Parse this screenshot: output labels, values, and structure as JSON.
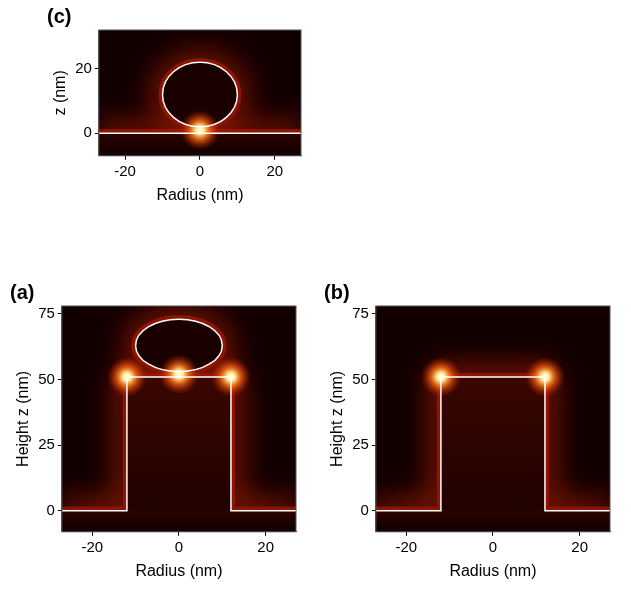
{
  "chart_data": [
    {
      "type": "field_map",
      "panel": "(c)",
      "xlabel": "Radius (nm)",
      "ylabel": "z (nm)",
      "xlim": [
        -27,
        27
      ],
      "ylim": [
        -7,
        32
      ],
      "xticks": [
        -20,
        0,
        20
      ],
      "yticks": [
        0,
        20
      ],
      "grid": false,
      "substrate_z": 0,
      "sphere": {
        "center": [
          0,
          12
        ],
        "radius": 10
      },
      "hot_spots": [
        {
          "x": 0,
          "z": 1
        }
      ]
    },
    {
      "type": "field_map",
      "panel": "(a)",
      "xlabel": "Radius (nm)",
      "ylabel": "Height z (nm)",
      "xlim": [
        -27,
        27
      ],
      "ylim": [
        -8,
        78
      ],
      "xticks": [
        -20,
        0,
        20
      ],
      "yticks": [
        0,
        25,
        50,
        75
      ],
      "grid": false,
      "substrate_z": 0,
      "pillar": {
        "radius": 12,
        "height": 51
      },
      "sphere": {
        "center": [
          0,
          63
        ],
        "radius": 10
      },
      "hot_spots": [
        {
          "x": 0,
          "z": 52
        },
        {
          "x": -12,
          "z": 51
        },
        {
          "x": 12,
          "z": 51
        }
      ]
    },
    {
      "type": "field_map",
      "panel": "(b)",
      "xlabel": "Radius (nm)",
      "ylabel": "Height z (nm)",
      "xlim": [
        -27,
        27
      ],
      "ylim": [
        -8,
        78
      ],
      "xticks": [
        -20,
        0,
        20
      ],
      "yticks": [
        0,
        25,
        50,
        75
      ],
      "grid": false,
      "substrate_z": 0,
      "pillar": {
        "radius": 12,
        "height": 51
      },
      "hot_spots": [
        {
          "x": -12,
          "z": 51
        },
        {
          "x": 12,
          "z": 51
        }
      ]
    }
  ]
}
